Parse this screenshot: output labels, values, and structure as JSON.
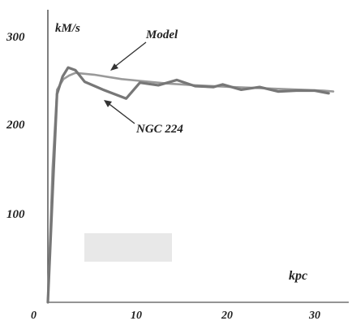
{
  "chart_data": {
    "type": "line",
    "xlabel": "kpc",
    "ylabel": "kM/s",
    "xlim": [
      0,
      34
    ],
    "ylim": [
      0,
      330
    ],
    "x_ticks": [
      0,
      10,
      20,
      30
    ],
    "x_tick_labels": [
      "0",
      "10",
      "20",
      "30"
    ],
    "y_ticks": [
      100,
      200,
      300
    ],
    "y_tick_labels": [
      "100",
      "200",
      "300"
    ],
    "grid": false,
    "series": [
      {
        "name": "Model",
        "color": "#9a9a9a",
        "x": [
          0,
          0.5,
          1,
          1.7,
          2.3,
          3,
          5,
          8,
          10,
          13,
          16,
          20,
          25,
          30,
          31
        ],
        "y": [
          0,
          150,
          240,
          252,
          256,
          259,
          257,
          252,
          250,
          247,
          245,
          243,
          241,
          239,
          238
        ]
      },
      {
        "name": "NGC 224",
        "color": "#7a7a7a",
        "x": [
          0,
          0.5,
          1,
          1.6,
          2.2,
          3.0,
          4.0,
          6.0,
          8.5,
          10,
          12,
          14,
          16,
          18,
          19,
          21,
          23,
          25,
          27,
          29,
          30.5
        ],
        "y": [
          0,
          120,
          235,
          255,
          265,
          262,
          249,
          240,
          230,
          248,
          245,
          251,
          244,
          243,
          246,
          240,
          243,
          238,
          239,
          239,
          236
        ]
      }
    ],
    "annotations": [
      {
        "text": "Model",
        "points_to_series": "Model"
      },
      {
        "text": "NGC 224",
        "points_to_series": "NGC 224"
      }
    ],
    "tick_labels_text": {
      "origin": "0"
    }
  }
}
